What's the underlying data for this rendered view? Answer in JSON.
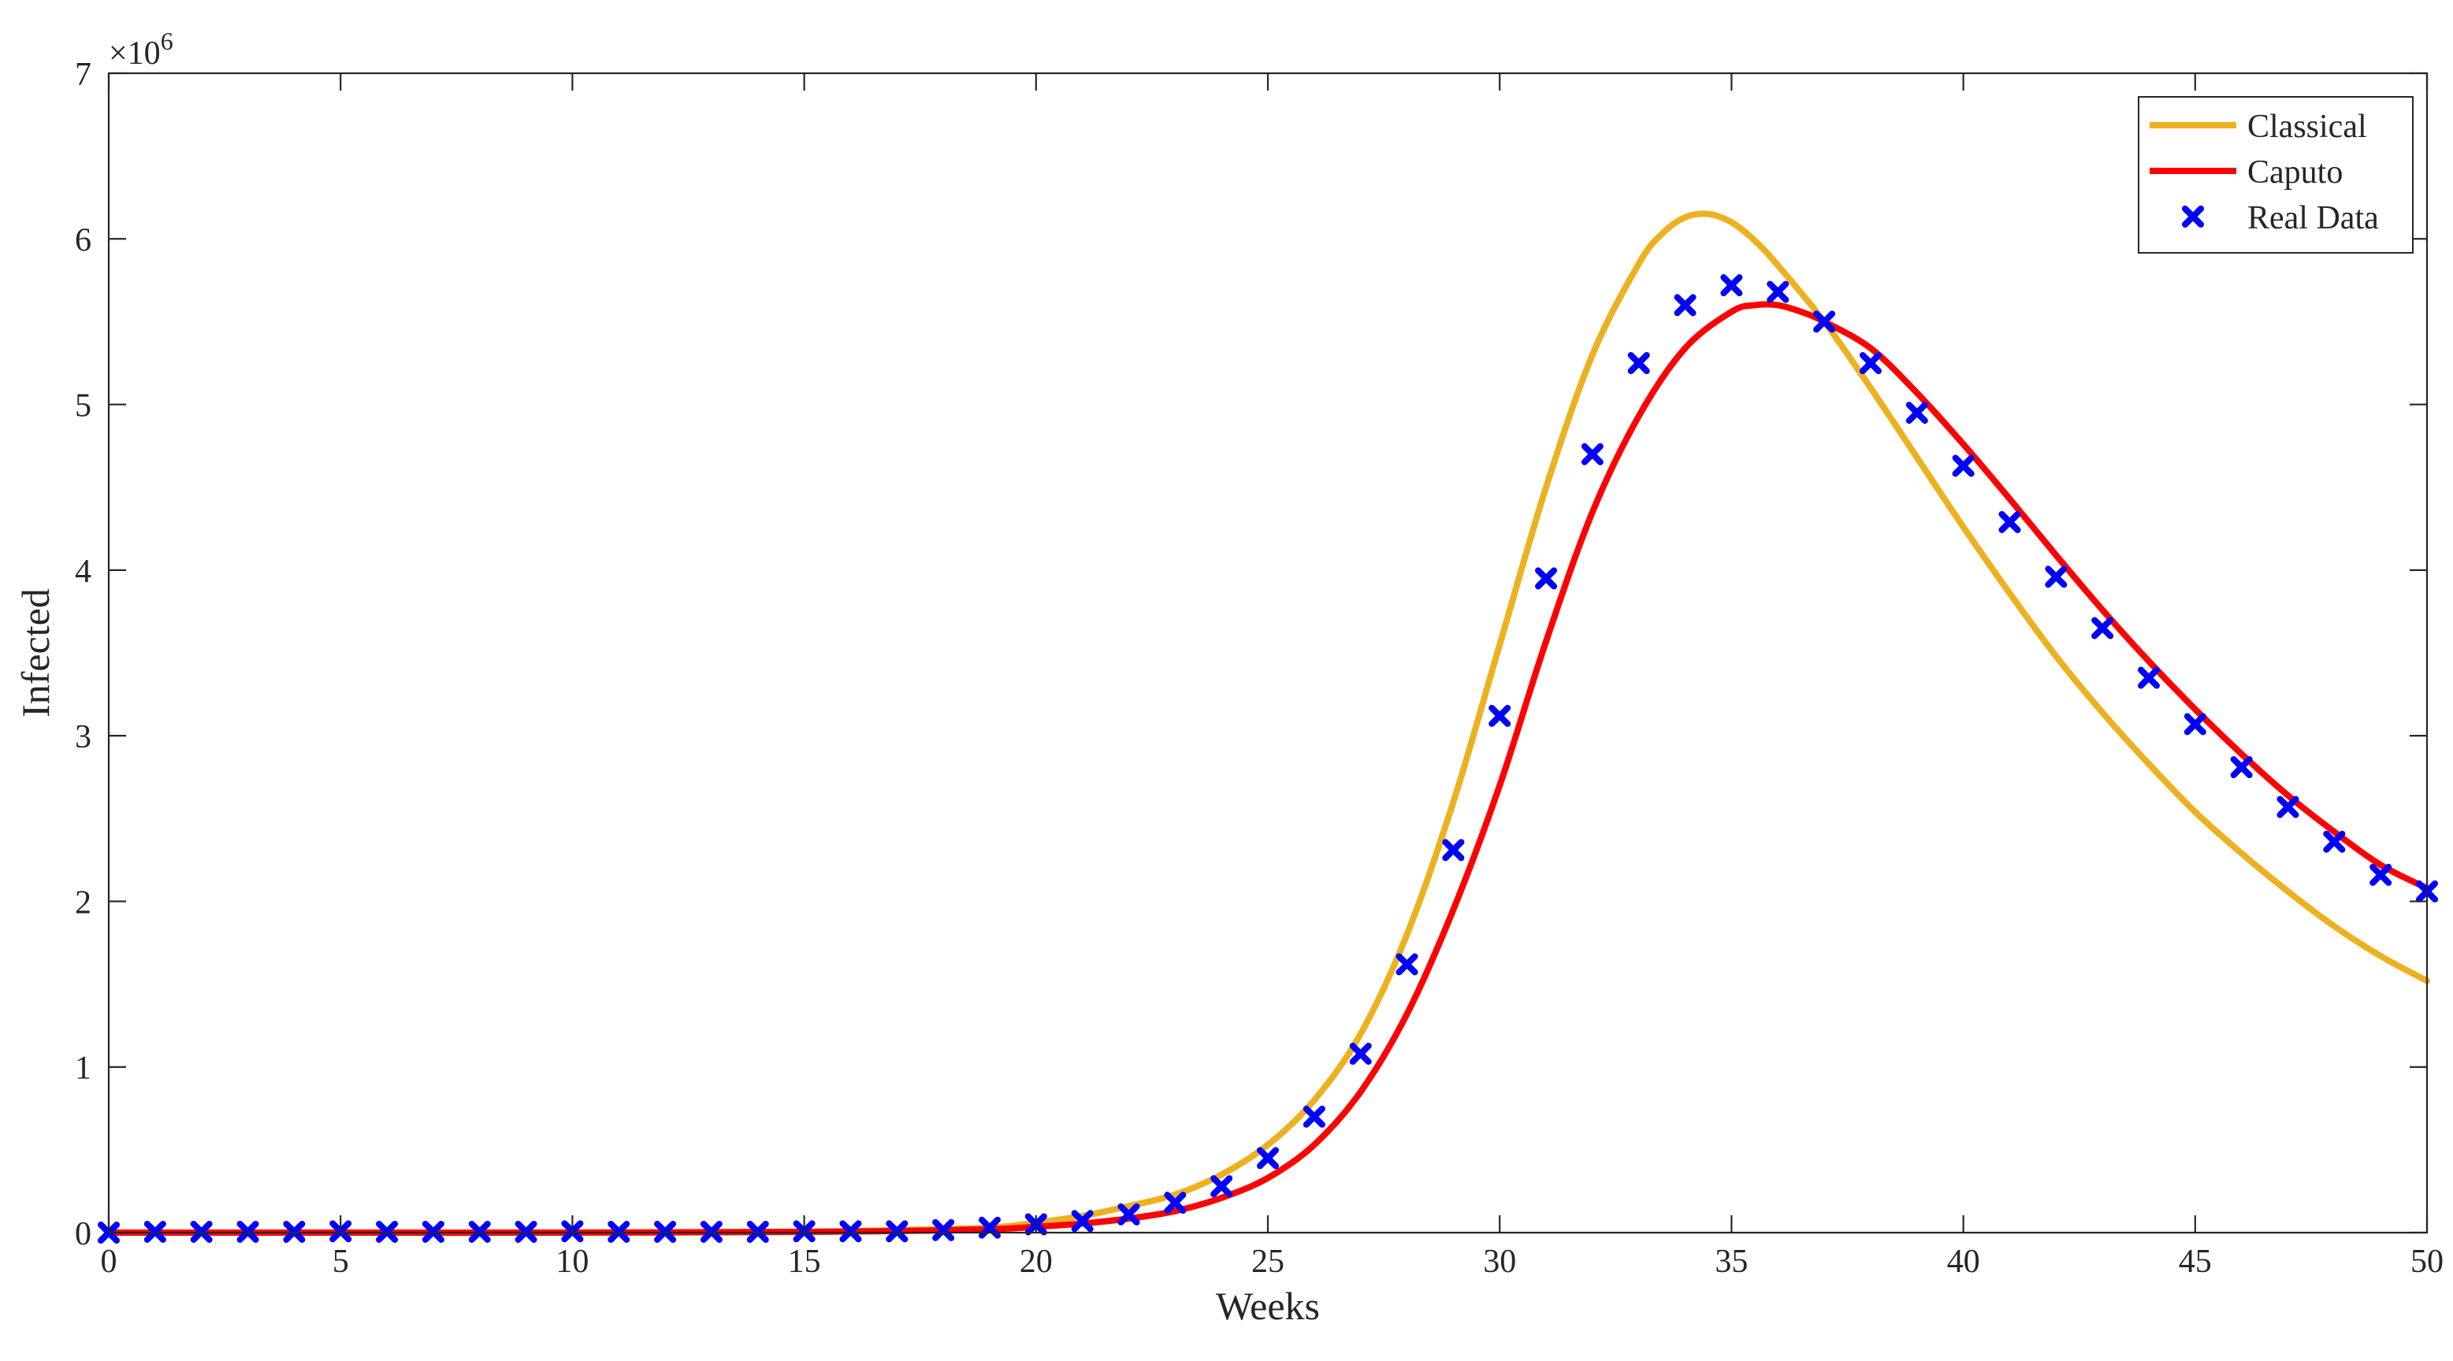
{
  "chart_data": {
    "type": "line",
    "title": "",
    "xlabel": "Weeks",
    "ylabel": "Infected",
    "xlim": [
      0,
      50
    ],
    "ylim": [
      0,
      7000000
    ],
    "y_exponent_label": "×10",
    "y_exponent_power": "6",
    "x_ticks": [
      0,
      5,
      10,
      15,
      20,
      25,
      30,
      35,
      40,
      45,
      50
    ],
    "y_ticks": [
      0,
      1000000,
      2000000,
      3000000,
      4000000,
      5000000,
      6000000,
      7000000
    ],
    "x_tick_labels": [
      "0",
      "5",
      "10",
      "15",
      "20",
      "25",
      "30",
      "35",
      "40",
      "45",
      "50"
    ],
    "y_tick_labels": [
      "0",
      "1",
      "2",
      "3",
      "4",
      "5",
      "6",
      "7"
    ],
    "grid": false,
    "legend_position": "top-right",
    "series": [
      {
        "name": "Classical",
        "kind": "line",
        "color": "#EDB120",
        "x": [
          0,
          5,
          10,
          15,
          17,
          19,
          20,
          21,
          22,
          23,
          24,
          25,
          26,
          27,
          28,
          29,
          30,
          31,
          32,
          33,
          33.5,
          34,
          34.5,
          35,
          35.5,
          36,
          37,
          38,
          39,
          40,
          41,
          42,
          43,
          44,
          45,
          46,
          47,
          48,
          49,
          50
        ],
        "y": [
          0,
          0,
          0,
          5000,
          15000,
          30000,
          60000,
          100000,
          160000,
          230000,
          350000,
          530000,
          800000,
          1200000,
          1800000,
          2600000,
          3550000,
          4500000,
          5300000,
          5850000,
          6030000,
          6130000,
          6150000,
          6100000,
          5990000,
          5840000,
          5500000,
          5100000,
          4680000,
          4260000,
          3860000,
          3480000,
          3140000,
          2830000,
          2540000,
          2290000,
          2060000,
          1850000,
          1670000,
          1520000
        ]
      },
      {
        "name": "Caputo",
        "kind": "line",
        "color": "#FF0000",
        "x": [
          0,
          5,
          10,
          15,
          17,
          19,
          20,
          21,
          22,
          23,
          24,
          25,
          26,
          27,
          28,
          29,
          30,
          31,
          32,
          33,
          34,
          35,
          35.5,
          36,
          36.5,
          37,
          38,
          39,
          40,
          41,
          42,
          43,
          44,
          45,
          46,
          47,
          48,
          49,
          50
        ],
        "y": [
          0,
          0,
          0,
          5000,
          10000,
          20000,
          35000,
          55000,
          85000,
          130000,
          210000,
          330000,
          530000,
          850000,
          1320000,
          1950000,
          2700000,
          3570000,
          4350000,
          4930000,
          5340000,
          5560000,
          5600000,
          5600000,
          5560000,
          5500000,
          5340000,
          5070000,
          4760000,
          4430000,
          4090000,
          3760000,
          3450000,
          3160000,
          2890000,
          2640000,
          2420000,
          2220000,
          2080000
        ]
      },
      {
        "name": "Real Data",
        "kind": "scatter",
        "color": "#0000FF",
        "x": [
          0,
          1,
          2,
          3,
          4,
          5,
          6,
          7,
          8,
          9,
          10,
          11,
          12,
          13,
          14,
          15,
          16,
          17,
          18,
          19,
          20,
          21,
          22,
          23,
          24,
          25,
          26,
          27,
          28,
          29,
          30,
          31,
          32,
          33,
          34,
          35,
          36,
          37,
          38,
          39,
          40,
          41,
          42,
          43,
          44,
          45,
          46,
          47,
          48,
          49,
          50
        ],
        "y": [
          0,
          5000,
          5000,
          5000,
          5000,
          8000,
          5000,
          5000,
          5000,
          5000,
          8000,
          5000,
          5000,
          5000,
          5000,
          8000,
          8000,
          8000,
          15000,
          30000,
          50000,
          70000,
          110000,
          180000,
          280000,
          450000,
          700000,
          1080000,
          1620000,
          2310000,
          3120000,
          3950000,
          4700000,
          5250000,
          5600000,
          5720000,
          5680000,
          5500000,
          5250000,
          4950000,
          4630000,
          4290000,
          3960000,
          3650000,
          3350000,
          3070000,
          2810000,
          2570000,
          2360000,
          2160000,
          2060000
        ]
      }
    ]
  }
}
